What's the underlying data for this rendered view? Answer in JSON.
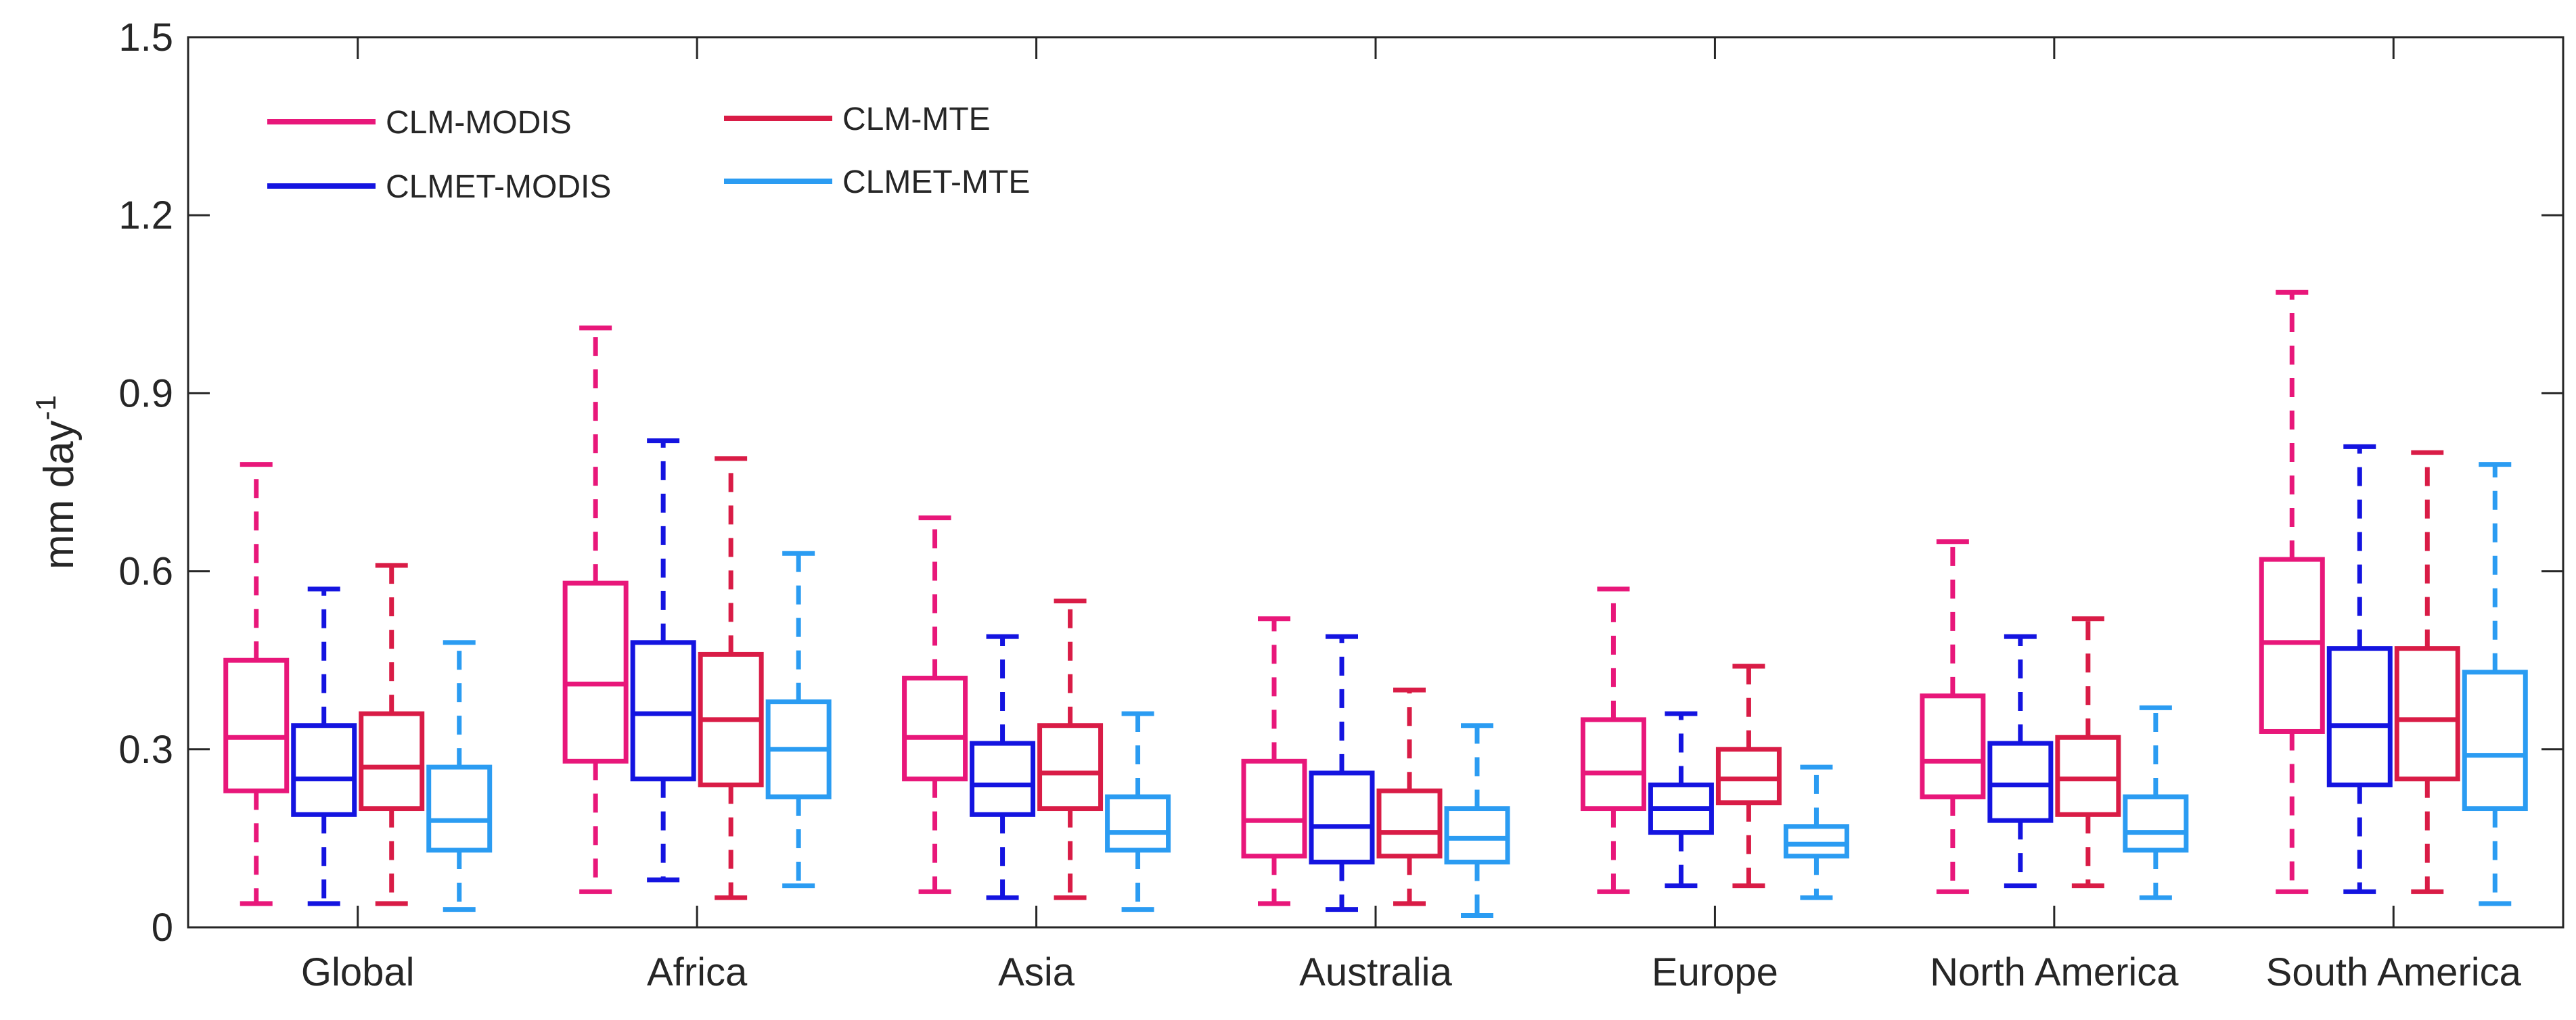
{
  "chart_data": {
    "type": "boxplot",
    "title": "",
    "xlabel": "",
    "ylabel": "mm day",
    "ylabel_superscript": "-1",
    "ylim": [
      0,
      1.5
    ],
    "yticks": [
      0,
      0.3,
      0.6,
      0.9,
      1.2,
      1.5
    ],
    "ytick_labels": [
      "0",
      "0.3",
      "0.6",
      "0.9",
      "1.2",
      "1.5"
    ],
    "legend_location": "top-left",
    "categories": [
      "Global",
      "Africa",
      "Asia",
      "Australia",
      "Europe",
      "North America",
      "South America"
    ],
    "series": [
      {
        "name": "CLM-MODIS",
        "color": "#e8177a",
        "boxes": [
          {
            "whisker_low": 0.04,
            "q1": 0.23,
            "median": 0.32,
            "q3": 0.45,
            "whisker_high": 0.78
          },
          {
            "whisker_low": 0.06,
            "q1": 0.28,
            "median": 0.41,
            "q3": 0.58,
            "whisker_high": 1.01
          },
          {
            "whisker_low": 0.06,
            "q1": 0.25,
            "median": 0.32,
            "q3": 0.42,
            "whisker_high": 0.69
          },
          {
            "whisker_low": 0.04,
            "q1": 0.12,
            "median": 0.18,
            "q3": 0.28,
            "whisker_high": 0.52
          },
          {
            "whisker_low": 0.06,
            "q1": 0.2,
            "median": 0.26,
            "q3": 0.35,
            "whisker_high": 0.57
          },
          {
            "whisker_low": 0.06,
            "q1": 0.22,
            "median": 0.28,
            "q3": 0.39,
            "whisker_high": 0.65
          },
          {
            "whisker_low": 0.06,
            "q1": 0.33,
            "median": 0.48,
            "q3": 0.62,
            "whisker_high": 1.07
          }
        ]
      },
      {
        "name": "CLMET-MODIS",
        "color": "#1414e0",
        "boxes": [
          {
            "whisker_low": 0.04,
            "q1": 0.19,
            "median": 0.25,
            "q3": 0.34,
            "whisker_high": 0.57
          },
          {
            "whisker_low": 0.08,
            "q1": 0.25,
            "median": 0.36,
            "q3": 0.48,
            "whisker_high": 0.82
          },
          {
            "whisker_low": 0.05,
            "q1": 0.19,
            "median": 0.24,
            "q3": 0.31,
            "whisker_high": 0.49
          },
          {
            "whisker_low": 0.03,
            "q1": 0.11,
            "median": 0.17,
            "q3": 0.26,
            "whisker_high": 0.49
          },
          {
            "whisker_low": 0.07,
            "q1": 0.16,
            "median": 0.2,
            "q3": 0.24,
            "whisker_high": 0.36
          },
          {
            "whisker_low": 0.07,
            "q1": 0.18,
            "median": 0.24,
            "q3": 0.31,
            "whisker_high": 0.49
          },
          {
            "whisker_low": 0.06,
            "q1": 0.24,
            "median": 0.34,
            "q3": 0.47,
            "whisker_high": 0.81
          }
        ]
      },
      {
        "name": "CLM-MTE",
        "color": "#d91c46",
        "boxes": [
          {
            "whisker_low": 0.04,
            "q1": 0.2,
            "median": 0.27,
            "q3": 0.36,
            "whisker_high": 0.61
          },
          {
            "whisker_low": 0.05,
            "q1": 0.24,
            "median": 0.35,
            "q3": 0.46,
            "whisker_high": 0.79
          },
          {
            "whisker_low": 0.05,
            "q1": 0.2,
            "median": 0.26,
            "q3": 0.34,
            "whisker_high": 0.55
          },
          {
            "whisker_low": 0.04,
            "q1": 0.12,
            "median": 0.16,
            "q3": 0.23,
            "whisker_high": 0.4
          },
          {
            "whisker_low": 0.07,
            "q1": 0.21,
            "median": 0.25,
            "q3": 0.3,
            "whisker_high": 0.44
          },
          {
            "whisker_low": 0.07,
            "q1": 0.19,
            "median": 0.25,
            "q3": 0.32,
            "whisker_high": 0.52
          },
          {
            "whisker_low": 0.06,
            "q1": 0.25,
            "median": 0.35,
            "q3": 0.47,
            "whisker_high": 0.8
          }
        ]
      },
      {
        "name": "CLMET-MTE",
        "color": "#2b9cf2",
        "boxes": [
          {
            "whisker_low": 0.03,
            "q1": 0.13,
            "median": 0.18,
            "q3": 0.27,
            "whisker_high": 0.48
          },
          {
            "whisker_low": 0.07,
            "q1": 0.22,
            "median": 0.3,
            "q3": 0.38,
            "whisker_high": 0.63
          },
          {
            "whisker_low": 0.03,
            "q1": 0.13,
            "median": 0.16,
            "q3": 0.22,
            "whisker_high": 0.36
          },
          {
            "whisker_low": 0.02,
            "q1": 0.11,
            "median": 0.15,
            "q3": 0.2,
            "whisker_high": 0.34
          },
          {
            "whisker_low": 0.05,
            "q1": 0.12,
            "median": 0.14,
            "q3": 0.17,
            "whisker_high": 0.27
          },
          {
            "whisker_low": 0.05,
            "q1": 0.13,
            "median": 0.16,
            "q3": 0.22,
            "whisker_high": 0.37
          },
          {
            "whisker_low": 0.04,
            "q1": 0.2,
            "median": 0.29,
            "q3": 0.43,
            "whisker_high": 0.78
          }
        ]
      }
    ]
  }
}
